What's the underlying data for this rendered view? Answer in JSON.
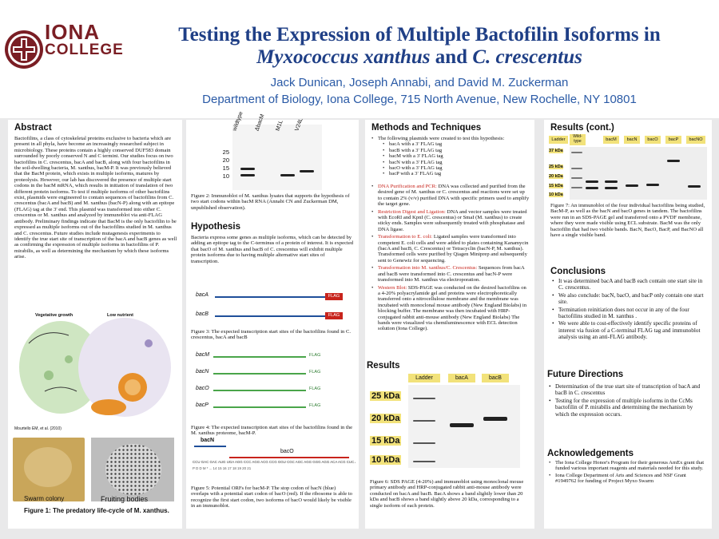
{
  "header": {
    "logo_text_1": "IONA",
    "logo_text_2": "COLLEGE",
    "title_line1": "Testing the Expression of Multiple Bactofilin Isoforms in",
    "title_line2_italic1": "Myxococcus xanthus",
    "title_line2_and": " and ",
    "title_line2_italic2": "C. crescentus",
    "authors": "Jack Dunican, Joseph Annabi, and David M. Zuckerman",
    "department": "Department of Biology, Iona College, 715 North Avenue, New Rochelle, NY 10801"
  },
  "abstract": {
    "heading": "Abstract",
    "text": "Bactofilins, a class of cytoskeletal proteins exclusive to bacteria which are present in all phyla, have become an increasingly researched subject in microbiology. These proteins contain a highly conserved DUF583 domain surrounded by poorly conserved N and C termini. Our studies focus on two bactofilins in C. crescentus, bacA and bacB, along with four bactofilins in the soil-dwelling bacteria, M. xanthus, bacM-P. It was previously believed that the BacM protein, which exists in multiple isoforms, matures by proteolysis. However, our lab has discovered the presence of multiple start codons in the bacM mRNA, which results in initiation of translation of two different protein isoforms. To test if multiple isoforms of other bactofilins exist, plasmids were engineered to contain sequences of bactofilins from C. crescentus (bacA and bacB) and M. xanthus (bacN-P) along with an epitope (FLAG) tag at the 3' end. This plasmid was transformed into either C. crescentus or M. xanthus and analyzed by immunoblot via anti-FLAG antibody. Preliminary findings indicate that BacM is the only bactofilin to be expressed as multiple isoforms out of the bactofilins studied in M. xanthus and C. crescentus. Future studies include mutagenesis experiments to identify the true start site of transcription of the bacA and bacB genes as well as confirming the expression of multiple isoforms in bactofilins of P. mirabilis, as well as determining the mechanism by which these isoforms arise.",
    "fig_labels": {
      "vegetative": "Vegetative growth",
      "low_nutrient": "Low nutrient",
      "citation": "Mourtello EM, et al. (2010)",
      "swarm": "Swarm colony",
      "fruiting": "Fruiting bodies"
    },
    "fig1_caption": "Figure 1: The predatory life-cycle of M. xanthus."
  },
  "fig2": {
    "lane_labels": [
      "wildtype",
      "ΔbacM",
      "M1L",
      "V24L"
    ],
    "markers": [
      "25",
      "20",
      "15",
      "10"
    ],
    "caption": "Figure 2: Immunoblot of M. xanthus lysates that supports the hypothesis of two start codons within bacM RNA (Annabi CN and Zuckerman DM, unpublished observation)."
  },
  "hypothesis": {
    "heading": "Hypothesis",
    "text": "Bacteria express some genes as multiple isoforms, which can be detected by adding an epitope tag to the C-terminus of a protein of interest. It is expected that bacO of M. xanthus and bacB of C. crescentus will exhibit multiple protein isoforms due to having multiple alternative start sites of transcription.",
    "fig3_genes": [
      "bacA",
      "bacB"
    ],
    "fig3_tag": "FLAG",
    "fig3_caption": "Figure 3: The expected transcription start sites of the bactofilins found in C. crescentus, bacA and bacB",
    "fig4_genes": [
      "bacM",
      "bacN",
      "bacO",
      "bacP"
    ],
    "fig4_tag": "FLAG",
    "fig4_caption": "Figure 4: The expected transcription start sites of the bactofilins found in the M. xanthus proteome, bacM-P.",
    "fig5_label_n": "bacN",
    "fig5_label_o": "bacO",
    "fig5_seq": "CCU GAC GAC AUG UGA AGG CCC AGG ACG CCG GGU CGC AGC AGG GGG AGG ACA ACG CUC AUG GCG",
    "fig5_nums": "P  D  D  M  *  ...  14  15  16  17  18  19  20  21",
    "fig5_caption": "Figure 5: Potential ORFs for bacM-P. The stop codon of bacN (blue) overlaps with a potential start codon of bacO (red). If the ribosome is able to recognize the first start codon, two isoforms of bacO would likely be visible in an immunoblot."
  },
  "methods": {
    "heading": "Methods and Techniques",
    "intro": "The following plasmids were created to test this hypothesis:",
    "plasmids": [
      "bacA with a 3' FLAG tag",
      "bacB with a 3' FLAG tag",
      "bacM with a 3' FLAG tag",
      "bacN with a 3' FLAG tag",
      "bacO with a 3' FLAG tag",
      "bacP with a 3' FLAG tag"
    ],
    "steps": [
      {
        "title": "DNA Purification and PCR:",
        "text": " DNA was collected and purified from the desired gene of M. xanthus or C. crescentus and reactions were set up to contain 2% (v/v) purified DNA with specific primers used to amplify the target gene."
      },
      {
        "title": "Restriction Digest and Ligation:",
        "text": " DNA and vector samples were treated with EcoRI and KpnI (C. crescentus) or SmaI (M. xanthus) to create sticky ends. Samples were subsequently treated with phosphatase and DNA ligase."
      },
      {
        "title": "Transformation to E. coli:",
        "text": " Ligated samples were transformed into competent E. coli cells and were added to plates containing Kanamycin (bacA and bacB, C. Crescentus) or Tetracyclin (bacN-P, M. xanthus). Transformed cells were purified by Qiagen Miniprep and subsequently sent to Genewiz for sequencing."
      },
      {
        "title": "Transformation into M. xanthus/C. Crescentus:",
        "text": " Sequences from bacA and bacB were transformed into C. crescentus and bacN-P were transformed into M. xanthus via electroporation."
      },
      {
        "title": "Western Blot:",
        "text": " SDS-PAGE was conducted on the desired bactofilins on a 4-20% polyacrylamide gel and proteins were electrophoretically transferred onto a nitrocellulose membrane and the membrane was incubated with monoclonal mouse antibody (New England Biolabs) in blocking buffer. The membrane was then incubated with HRP-conjugated rabbit anti-mouse antibody (New England Biolabs) The bands were visualized via chemiluminescence with ECL detection solution (Iona College)."
      }
    ]
  },
  "results": {
    "heading": "Results",
    "lanes": [
      "Ladder",
      "bacA",
      "bacB"
    ],
    "markers": [
      "25 kDa",
      "20 kDa",
      "15 kDa",
      "10 kDa"
    ],
    "caption": "Figure 6: SDS PAGE (4-20%) and immunoblot using monoclonal mouse primary antibody and HRP-conjugated rabbit anti-mouse antibody were conducted on bacA and bacB. BacA shows a band slightly lower than 20 kDa and bacB shows a band slightly above 20 kDa, corresponding to a single isoform of each protein."
  },
  "results_cont": {
    "heading": "Results (cont.)",
    "lanes": [
      "Ladder",
      "Wild-type",
      "bacM",
      "bacN",
      "bacO",
      "bacP",
      "bacNO"
    ],
    "markers": [
      "37 kDa",
      "25 kDa",
      "20 kDa",
      "15 kDa",
      "10 kDa"
    ],
    "caption": "Figure 7: An immunoblot of the four individual bactofilins being studied, BacM-P, as well as the bacN and bacO genes in tandem. The bactofilins were run in an SDS-PAGE gel and transferred onto a PVDF membrane, where they were made visible using ECL substrate. BacM was the only bactofilin that had two visible bands. BacN, BacO, BacP, and BacNO all have a single visible band."
  },
  "conclusions": {
    "heading": "Conclusions",
    "items": [
      "It was determined bacA and bacB each contain one start site in C. crescentus.",
      "We also conclude: bacN, bacO, and bacP only contain one start site.",
      "Termination reinitiation does not occur in any of the four bactofilins studied in M. xanthus .",
      "We were able to cost-effectively identify specific proteins of interest via fusion of a C-terminal FLAG tag and immunoblot analysis using an anti-FLAG antibody."
    ]
  },
  "future": {
    "heading": "Future Directions",
    "items": [
      "Determination of the true start site of transcription of bacA and bacB in C. crescentus",
      "Testing for the expression of multiple isoforms in the CcMs bactofilin of P. mirabilis and determining the mechanism by which the expression occurs."
    ]
  },
  "acknowledgements": {
    "heading": "Acknowledgements",
    "items": [
      "The Iona College Honor's Program for their generous AmEx grant that funded various important reagents and materials needed for this study.",
      "Iona College Department of Arts and Sciences and NSF Grant #1949762 for funding of Project Myxo Swarm"
    ]
  },
  "colors": {
    "title": "#1f3f86",
    "authors": "#2a5aa6",
    "logo": "#7a1e24",
    "red": "#c8241c",
    "panel_bg": "#e9e9ea"
  }
}
